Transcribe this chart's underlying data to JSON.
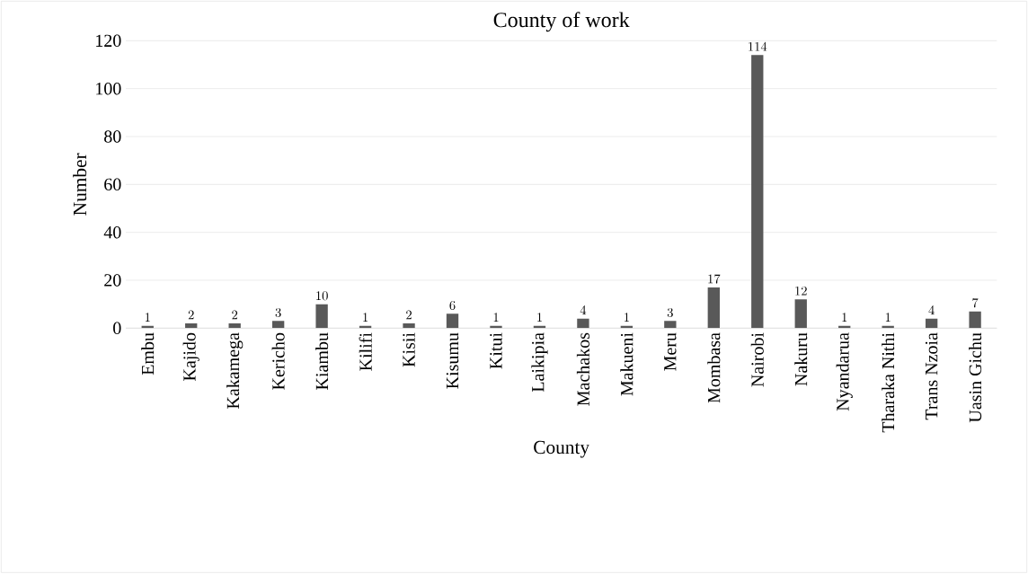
{
  "chart_data": {
    "type": "bar",
    "title": "County of work",
    "xlabel": "County",
    "ylabel": "Number",
    "categories": [
      "Embu",
      "Kajido",
      "Kakamega",
      "Kericho",
      "Kiambu",
      "Kilifi",
      "Kisii",
      "Kisumu",
      "Kitui",
      "Laikipia",
      "Machakos",
      "Makueni",
      "Meru",
      "Mombasa",
      "Nairobi",
      "Nakuru",
      "Nyandarua",
      "Tharaka Nithi",
      "Trans Nzoia",
      "Uasin Gichu"
    ],
    "values": [
      1,
      2,
      2,
      3,
      10,
      1,
      2,
      6,
      1,
      1,
      4,
      1,
      3,
      17,
      114,
      12,
      1,
      1,
      4,
      7
    ],
    "color": "#595959",
    "ylim": [
      0,
      120
    ],
    "yticks": [
      0,
      20,
      40,
      60,
      80,
      100,
      120
    ],
    "grid": "y",
    "data_labels": true
  }
}
